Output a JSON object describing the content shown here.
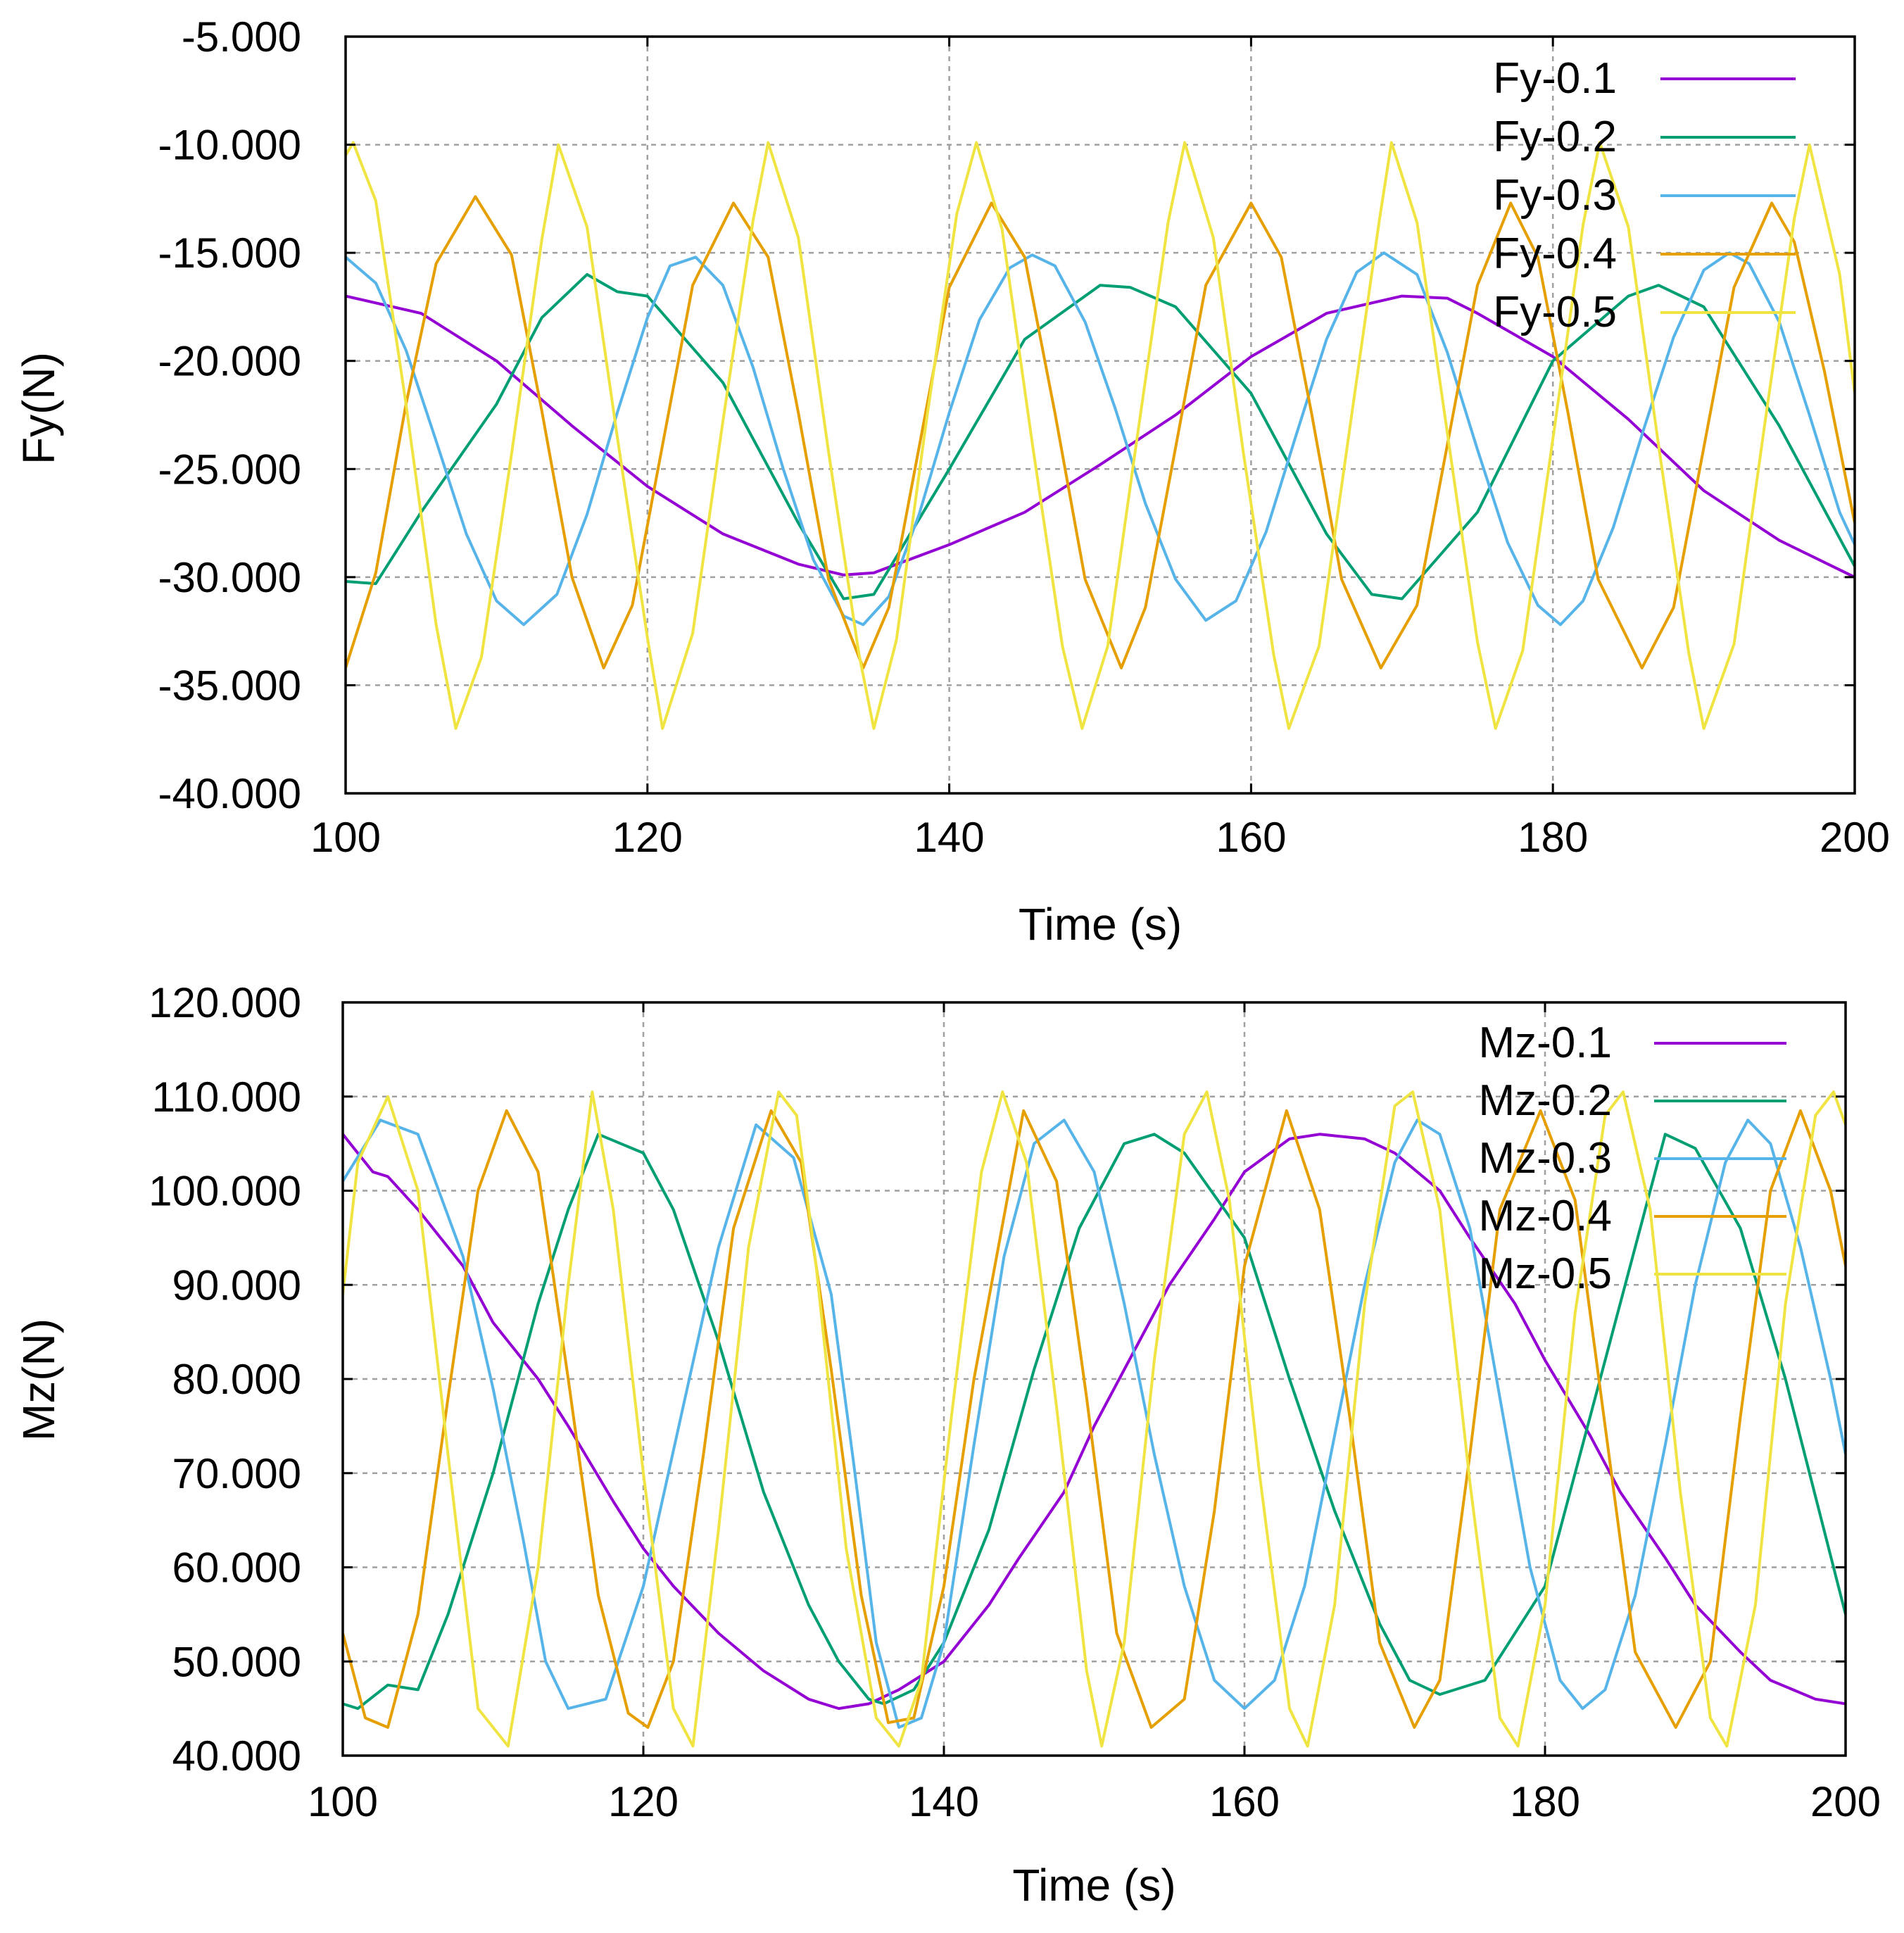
{
  "chart_data": [
    {
      "type": "line",
      "title": "",
      "xlabel": "Time (s)",
      "ylabel": "Fy(N)",
      "xlim": [
        100,
        200
      ],
      "ylim": [
        -40,
        -5
      ],
      "xticks": [
        100,
        120,
        140,
        160,
        180,
        200
      ],
      "xtick_labels": [
        "100",
        "120",
        "140",
        "160",
        "180",
        "200"
      ],
      "yticks": [
        -5,
        -10,
        -15,
        -20,
        -25,
        -30,
        -35,
        -40
      ],
      "ytick_labels": [
        "-5.000",
        "-10.000",
        "-15.000",
        "-20.000",
        "-25.000",
        "-30.000",
        "-35.000",
        "-40.000"
      ],
      "grid": true,
      "legend_position": "top-right",
      "series": [
        {
          "name": "Fy-0.1",
          "color": "#9400d3",
          "x": [
            100,
            105,
            110,
            115,
            120,
            125,
            130,
            133,
            135,
            140,
            145,
            150,
            155,
            160,
            165,
            170,
            173,
            175,
            180,
            185,
            190,
            195,
            200
          ],
          "y": [
            -17,
            -17.8,
            -20,
            -23,
            -25.8,
            -28,
            -29.4,
            -29.9,
            -29.8,
            -28.5,
            -27,
            -24.8,
            -22.5,
            -19.8,
            -17.8,
            -17,
            -17.1,
            -17.8,
            -19.8,
            -22.7,
            -26,
            -28.3,
            -30
          ]
        },
        {
          "name": "Fy-0.2",
          "color": "#009e73",
          "x": [
            100,
            102,
            105,
            110,
            113,
            116,
            118,
            120,
            125,
            130,
            133,
            135,
            140,
            145,
            150,
            152,
            155,
            160,
            165,
            168,
            170,
            175,
            180,
            185,
            187,
            190,
            195,
            200
          ],
          "y": [
            -30.2,
            -30.3,
            -27,
            -22,
            -18,
            -16,
            -16.8,
            -17,
            -21,
            -27.5,
            -31,
            -30.8,
            -25,
            -19,
            -16.5,
            -16.6,
            -17.5,
            -21.5,
            -28,
            -30.8,
            -31,
            -27,
            -20,
            -17,
            -16.5,
            -17.5,
            -23,
            -29.5
          ]
        },
        {
          "name": "Fy-0.3",
          "color": "#56b4e9",
          "x": [
            100,
            102,
            104,
            106,
            108,
            110,
            111.8,
            114,
            116,
            118,
            120,
            121.5,
            123.2,
            125,
            127,
            129,
            131,
            133,
            134.3,
            136,
            138,
            140,
            142,
            144,
            145.5,
            147,
            149,
            151,
            153,
            155,
            157,
            159,
            161,
            163,
            165,
            167,
            168.8,
            171,
            173,
            175,
            177,
            179,
            180.5,
            182,
            184,
            186,
            188,
            190,
            191.7,
            193,
            195,
            197,
            199,
            200
          ],
          "y": [
            -15.2,
            -16.4,
            -19.5,
            -23.7,
            -28,
            -31.1,
            -32.2,
            -30.8,
            -27.1,
            -22.4,
            -18,
            -15.6,
            -15.2,
            -16.5,
            -20.3,
            -25,
            -29.2,
            -31.8,
            -32.2,
            -30.9,
            -27.1,
            -22.4,
            -18.1,
            -15.7,
            -15.1,
            -15.6,
            -18.2,
            -22.2,
            -26.6,
            -30.1,
            -32,
            -31.1,
            -27.9,
            -23.4,
            -19,
            -15.9,
            -15,
            -16,
            -19.6,
            -24.1,
            -28.4,
            -31.3,
            -32.2,
            -31.1,
            -27.7,
            -23.2,
            -18.9,
            -15.8,
            -15,
            -15.5,
            -18.2,
            -22.5,
            -27,
            -28.5
          ]
        },
        {
          "name": "Fy-0.4",
          "color": "#e69f00",
          "x": [
            100,
            102,
            104,
            106,
            108.6,
            111,
            113,
            115,
            117.1,
            119,
            121,
            123,
            125.7,
            128,
            130,
            132,
            134.3,
            136,
            138,
            140,
            142.8,
            145,
            147,
            149,
            151.4,
            153,
            155,
            157,
            160,
            162,
            164,
            166,
            168.6,
            171,
            173,
            175,
            177.2,
            179,
            181,
            183,
            185.9,
            188,
            190,
            192,
            194.5,
            196,
            198,
            200
          ],
          "y": [
            -34.2,
            -29.8,
            -22,
            -15.5,
            -12.4,
            -15.1,
            -22.3,
            -30,
            -34.2,
            -31.3,
            -23.9,
            -16.5,
            -12.7,
            -15.2,
            -22.4,
            -30.1,
            -34.2,
            -31.4,
            -24,
            -16.6,
            -12.7,
            -15.2,
            -22.4,
            -30.1,
            -34.2,
            -31.4,
            -24,
            -16.5,
            -12.7,
            -15.2,
            -22.4,
            -30.1,
            -34.2,
            -31.3,
            -23.9,
            -16.5,
            -12.7,
            -15.2,
            -22.4,
            -30.1,
            -34.2,
            -31.4,
            -24,
            -16.6,
            -12.7,
            -14.5,
            -20.5,
            -27.5
          ]
        },
        {
          "name": "Fy-0.5",
          "color": "#f0e442",
          "x": [
            100,
            100.5,
            102,
            104,
            106,
            107.3,
            109,
            111,
            113,
            114.1,
            116,
            118,
            120,
            121,
            123,
            125,
            127,
            128,
            130,
            132,
            134,
            135,
            136.5,
            138.5,
            140.5,
            141.8,
            143.5,
            145.5,
            147.5,
            148.8,
            150.5,
            152.5,
            154.5,
            155.6,
            157.5,
            159.5,
            161.5,
            162.5,
            164.5,
            166.5,
            168.5,
            169.3,
            171,
            173,
            175,
            176.2,
            178,
            180,
            182,
            183.1,
            185,
            187,
            189,
            190,
            192,
            194,
            196,
            197,
            199,
            200
          ],
          "y": [
            -10.5,
            -9.9,
            -12.6,
            -22,
            -32.2,
            -37,
            -33.7,
            -24.3,
            -14.4,
            -10,
            -13.8,
            -23.5,
            -32.8,
            -37,
            -32.6,
            -22.8,
            -13.5,
            -9.9,
            -14.3,
            -24.2,
            -33.5,
            -37,
            -32.9,
            -22.7,
            -13.2,
            -9.9,
            -13.9,
            -23.8,
            -33.2,
            -37,
            -33.2,
            -23.3,
            -13.6,
            -9.9,
            -14.3,
            -24.3,
            -33.6,
            -37,
            -33.2,
            -23.3,
            -13.5,
            -9.9,
            -13.6,
            -23.3,
            -33,
            -37,
            -33.4,
            -23.6,
            -13.7,
            -9.9,
            -13.8,
            -23.9,
            -33.5,
            -37,
            -33.1,
            -23.1,
            -13.4,
            -10,
            -16,
            -21.5
          ]
        }
      ]
    },
    {
      "type": "line",
      "title": "",
      "xlabel": "Time (s)",
      "ylabel": "Mz(N)",
      "xlim": [
        100,
        200
      ],
      "ylim": [
        40,
        120
      ],
      "xticks": [
        100,
        120,
        140,
        160,
        180,
        200
      ],
      "xtick_labels": [
        "100",
        "120",
        "140",
        "160",
        "180",
        "200"
      ],
      "yticks": [
        120,
        110,
        100,
        90,
        80,
        70,
        60,
        50,
        40
      ],
      "ytick_labels": [
        "120.000",
        "110.000",
        "100.000",
        "90.000",
        "80.000",
        "70.000",
        "60.000",
        "50.000",
        "40.000"
      ],
      "grid": true,
      "legend_position": "top-right",
      "series": [
        {
          "name": "Mz-0.1",
          "color": "#9400d3",
          "x": [
            100,
            102,
            103,
            105,
            108,
            110,
            113,
            115,
            118,
            120,
            122,
            125,
            128,
            131,
            133,
            135,
            137,
            140,
            143,
            145,
            148,
            150,
            153,
            155,
            158,
            160,
            163,
            165,
            168,
            170,
            173,
            175,
            178,
            180,
            183,
            185,
            188,
            190,
            193,
            195,
            198,
            200
          ],
          "y": [
            106,
            102,
            101.5,
            98,
            92,
            86,
            80,
            75,
            67,
            62,
            58,
            53,
            49,
            46,
            45,
            45.5,
            47,
            50,
            56,
            61,
            68,
            75,
            84,
            90,
            97,
            102,
            105.5,
            106,
            105.5,
            104,
            100,
            95,
            88,
            82,
            74,
            68,
            61,
            56,
            51,
            48,
            46,
            45.5
          ]
        },
        {
          "name": "Mz-0.2",
          "color": "#009e73",
          "x": [
            100,
            101,
            103,
            105,
            107,
            110,
            113,
            115,
            117,
            120,
            122,
            125,
            128,
            131,
            133,
            135,
            136,
            138,
            140,
            143,
            146,
            149,
            152,
            154,
            156,
            160,
            163,
            166,
            169,
            171,
            173,
            176,
            180,
            183,
            186,
            188,
            190,
            193,
            196,
            200
          ],
          "y": [
            45.5,
            45,
            47.5,
            47,
            55,
            70,
            88,
            98,
            106,
            104,
            98,
            84,
            68,
            56,
            50,
            46,
            45.5,
            47,
            52,
            64,
            81,
            96,
            105,
            106,
            104,
            95,
            80,
            66,
            54,
            48,
            46.5,
            48,
            58,
            76,
            94,
            106,
            104.5,
            96,
            80,
            55
          ]
        },
        {
          "name": "Mz-0.3",
          "color": "#56b4e9",
          "x": [
            100,
            102.5,
            105,
            108,
            110,
            112,
            113.5,
            115,
            117.5,
            120,
            122.5,
            125,
            127.5,
            130,
            132.5,
            134,
            135.5,
            137,
            138.5,
            140,
            142,
            144,
            146,
            148,
            150,
            152,
            154,
            156,
            158,
            160,
            162,
            164,
            166,
            168,
            170,
            171.5,
            173,
            175,
            177,
            179,
            181,
            182.5,
            184,
            186,
            188,
            190,
            192,
            193.5,
            195,
            197,
            199,
            200
          ],
          "y": [
            101,
            107.5,
            106,
            93,
            79,
            63,
            50,
            45,
            46,
            58,
            76,
            94,
            107,
            103.5,
            89,
            71,
            52,
            43,
            44,
            52,
            73,
            93,
            105,
            107.5,
            102,
            88,
            72,
            58,
            48,
            45,
            48,
            58,
            74,
            90,
            103,
            107.5,
            106,
            96,
            78,
            60,
            48,
            45,
            47,
            57,
            73,
            90,
            103,
            107.5,
            105,
            94,
            80,
            72
          ]
        },
        {
          "name": "Mz-0.4",
          "color": "#e69f00",
          "x": [
            100,
            101.5,
            103,
            105,
            107,
            109,
            110.9,
            113,
            115,
            117,
            119,
            120.3,
            122,
            124,
            126,
            128.5,
            130.5,
            132.5,
            134.5,
            136.3,
            138,
            140,
            142,
            145.3,
            147.5,
            149.5,
            151.5,
            153.8,
            156,
            158,
            160,
            162.8,
            165,
            167,
            169,
            171.3,
            173,
            175,
            177,
            179.7,
            182,
            184,
            186,
            188.7,
            191,
            193,
            195,
            197,
            199,
            200
          ],
          "y": [
            53,
            44,
            43,
            55,
            78,
            100,
            108.5,
            102,
            80,
            57,
            44.5,
            43,
            50,
            72,
            96,
            108.5,
            103,
            81,
            57,
            43.5,
            44,
            58,
            80,
            108.5,
            101,
            78,
            53,
            43,
            46,
            66,
            92,
            108.5,
            98,
            76,
            52,
            43,
            48,
            72,
            98,
            108.5,
            99,
            75,
            51,
            43,
            50,
            76,
            100,
            108.5,
            100,
            92
          ]
        },
        {
          "name": "Mz-0.5",
          "color": "#f0e442",
          "x": [
            100,
            101,
            103,
            105,
            107,
            109,
            111,
            113,
            115,
            116.6,
            118,
            120,
            122,
            123.3,
            125,
            127,
            129,
            130.2,
            131.5,
            133.5,
            135.5,
            137,
            138.5,
            140.5,
            142.5,
            143.9,
            145.5,
            147.5,
            149.5,
            150.5,
            152,
            154,
            156,
            157.5,
            159,
            161,
            163,
            164.2,
            166,
            168,
            170,
            171.2,
            173,
            175,
            177,
            178.2,
            180,
            182,
            184,
            185.2,
            187,
            189,
            191,
            192.1,
            194,
            196,
            198,
            199.2,
            200
          ],
          "y": [
            89,
            103,
            110,
            100,
            72,
            45,
            41,
            60,
            90,
            110.5,
            98,
            70,
            45,
            41,
            64,
            94,
            110.5,
            108,
            92,
            62,
            44,
            41,
            48,
            76,
            102,
            110.5,
            103,
            77,
            49,
            41,
            52,
            82,
            106,
            110.5,
            99,
            70,
            45,
            41,
            56,
            88,
            109,
            110.5,
            98,
            69,
            44,
            41,
            56,
            87,
            108,
            110.5,
            98,
            68,
            44,
            41,
            56,
            88,
            108,
            110.5,
            107
          ]
        }
      ]
    }
  ]
}
